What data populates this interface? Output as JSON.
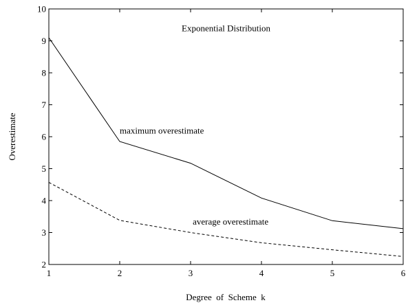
{
  "chart_data": {
    "type": "line",
    "title": "",
    "xlabel": "Degree  of  Scheme  k",
    "ylabel": "Overestimate",
    "xlim": [
      1,
      6
    ],
    "ylim": [
      2,
      10
    ],
    "xticks": [
      1,
      2,
      3,
      4,
      5,
      6
    ],
    "yticks": [
      2,
      3,
      4,
      5,
      6,
      7,
      8,
      9,
      10
    ],
    "grid": false,
    "legend": "none",
    "x": [
      1,
      2,
      3,
      4,
      5,
      6
    ],
    "series": [
      {
        "name": "maximum overestimate",
        "values": [
          9.1,
          5.85,
          5.17,
          4.08,
          3.37,
          3.12
        ],
        "style": "solid",
        "color": "#000000"
      },
      {
        "name": "average overestimate",
        "values": [
          4.57,
          3.38,
          3.0,
          2.68,
          2.46,
          2.25
        ],
        "style": "dashed",
        "color": "#000000"
      }
    ],
    "annotations": [
      {
        "text": "Exponential Distribution",
        "x": 3.5,
        "y": 9.3
      },
      {
        "text": "maximum overestimate",
        "x": 2.0,
        "y": 6.1
      },
      {
        "text": "average overestimate",
        "x": 3.03,
        "y": 3.25
      }
    ]
  }
}
